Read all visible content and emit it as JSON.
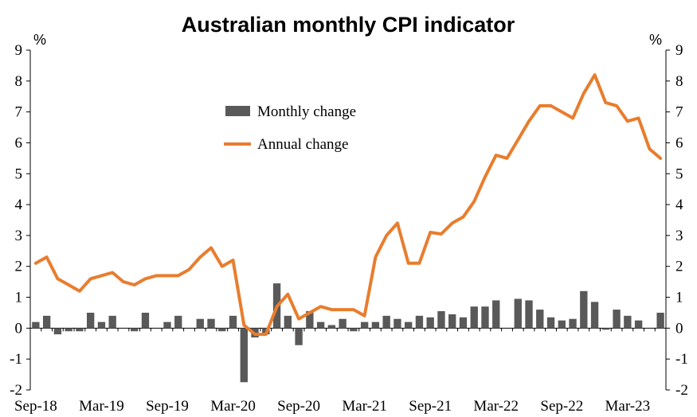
{
  "chart_data": {
    "type": "bar+line",
    "title": "Australian monthly CPI indicator",
    "y_unit_left": "%",
    "y_unit_right": "%",
    "ylim": [
      -2,
      9
    ],
    "yticks": [
      -2,
      -1,
      0,
      1,
      2,
      3,
      4,
      5,
      6,
      7,
      8,
      9
    ],
    "x_tick_labels": [
      "Sep-18",
      "Mar-19",
      "Sep-19",
      "Mar-20",
      "Sep-20",
      "Mar-21",
      "Sep-21",
      "Mar-22",
      "Sep-22",
      "Mar-23"
    ],
    "x_tick_start_index": 0,
    "x_tick_step": 6,
    "legend_position": "upper-left-center",
    "colors": {
      "monthly": "#595959",
      "annual": "#E87D2E"
    },
    "categories": [
      "Sep-18",
      "Oct-18",
      "Nov-18",
      "Dec-18",
      "Jan-19",
      "Feb-19",
      "Mar-19",
      "Apr-19",
      "May-19",
      "Jun-19",
      "Jul-19",
      "Aug-19",
      "Sep-19",
      "Oct-19",
      "Nov-19",
      "Dec-19",
      "Jan-20",
      "Feb-20",
      "Mar-20",
      "Apr-20",
      "May-20",
      "Jun-20",
      "Jul-20",
      "Aug-20",
      "Sep-20",
      "Oct-20",
      "Nov-20",
      "Dec-20",
      "Jan-21",
      "Feb-21",
      "Mar-21",
      "Apr-21",
      "May-21",
      "Jun-21",
      "Jul-21",
      "Aug-21",
      "Sep-21",
      "Oct-21",
      "Nov-21",
      "Dec-21",
      "Jan-22",
      "Feb-22",
      "Mar-22",
      "Apr-22",
      "May-22",
      "Jun-22",
      "Jul-22",
      "Aug-22",
      "Sep-22",
      "Oct-22",
      "Nov-22",
      "Dec-22",
      "Jan-23",
      "Feb-23",
      "Mar-23",
      "Apr-23",
      "May-23",
      "Jun-23"
    ],
    "series": [
      {
        "name": "Monthly change",
        "kind": "bar",
        "values": [
          0.2,
          0.4,
          -0.2,
          -0.1,
          -0.1,
          0.5,
          0.2,
          0.4,
          0.0,
          -0.1,
          0.5,
          0.0,
          0.2,
          0.4,
          0.0,
          0.3,
          0.3,
          -0.1,
          0.4,
          -1.75,
          -0.3,
          -0.2,
          1.45,
          0.4,
          -0.55,
          0.55,
          0.2,
          0.1,
          0.3,
          -0.1,
          0.2,
          0.2,
          0.4,
          0.3,
          0.2,
          0.4,
          0.35,
          0.55,
          0.45,
          0.35,
          0.7,
          0.7,
          0.9,
          0.0,
          0.95,
          0.9,
          0.6,
          0.35,
          0.25,
          0.3,
          1.2,
          0.85,
          -0.05,
          0.6,
          0.4,
          0.25,
          0.0,
          0.5
        ]
      },
      {
        "name": "Annual change",
        "kind": "line",
        "values": [
          2.1,
          2.3,
          1.6,
          1.4,
          1.2,
          1.6,
          1.7,
          1.8,
          1.5,
          1.4,
          1.6,
          1.7,
          1.7,
          1.7,
          1.9,
          2.3,
          2.6,
          2.0,
          2.2,
          0.1,
          -0.2,
          -0.2,
          0.7,
          1.1,
          0.3,
          0.5,
          0.7,
          0.6,
          0.6,
          0.6,
          0.4,
          2.3,
          3.0,
          3.4,
          2.1,
          2.1,
          3.1,
          3.05,
          3.4,
          3.6,
          4.1,
          4.9,
          5.6,
          5.5,
          6.1,
          6.7,
          7.2,
          7.2,
          7.0,
          6.8,
          7.6,
          8.2,
          7.3,
          7.2,
          6.7,
          6.8,
          5.8,
          5.5
        ]
      }
    ]
  }
}
